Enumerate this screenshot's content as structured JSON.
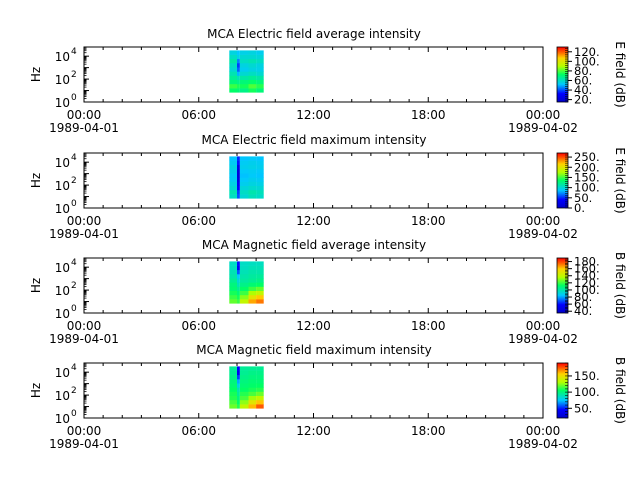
{
  "chart_data": [
    {
      "type": "heatmap",
      "title": "MCA  Electric field average intensity",
      "ylabel": "Hz",
      "colorbar_label": "E field (dB)",
      "colorbar_range": [
        15,
        130
      ],
      "colorbar_ticks": [
        "20.",
        "40.",
        "60.",
        "80.",
        "100.",
        "120."
      ],
      "colorbar_values": [
        20,
        40,
        60,
        80,
        100,
        120
      ],
      "x_ticks": [
        "00:00",
        "06:00",
        "12:00",
        "18:00",
        "00:00"
      ],
      "x_date_start": "1989-04-01",
      "x_date_end": "1989-04-02",
      "y_ticks": [
        "10",
        "10",
        "10"
      ],
      "y_tick_exps": [
        "0",
        "2",
        "4"
      ],
      "y_range_log10": [
        0,
        4.8
      ],
      "data_time_range_hours": [
        7.6,
        9.4
      ],
      "blocks": [
        {
          "t0": 7.6,
          "t1": 8.0,
          "v": [
            72,
            78,
            70,
            66,
            62,
            58,
            60,
            64,
            60,
            56
          ]
        },
        {
          "t0": 8.0,
          "t1": 8.15,
          "v": [
            70,
            75,
            68,
            62,
            50,
            42,
            38,
            45,
            55,
            52
          ]
        },
        {
          "t0": 8.15,
          "t1": 8.6,
          "v": [
            68,
            74,
            70,
            64,
            58,
            54,
            56,
            60,
            58,
            55
          ]
        },
        {
          "t0": 8.6,
          "t1": 9.0,
          "v": [
            74,
            80,
            72,
            66,
            60,
            56,
            58,
            62,
            58,
            56
          ]
        },
        {
          "t0": 9.0,
          "t1": 9.4,
          "v": [
            70,
            76,
            70,
            64,
            58,
            55,
            56,
            60,
            57,
            54
          ]
        }
      ]
    },
    {
      "type": "heatmap",
      "title": "MCA  Electric field maximum intensity",
      "ylabel": "Hz",
      "colorbar_label": "E field (dB)",
      "colorbar_range": [
        0,
        270
      ],
      "colorbar_ticks": [
        "0.",
        "50.",
        "100.",
        "150.",
        "200.",
        "250."
      ],
      "colorbar_values": [
        0,
        50,
        100,
        150,
        200,
        250
      ],
      "x_ticks": [
        "00:00",
        "06:00",
        "12:00",
        "18:00",
        "00:00"
      ],
      "x_date_start": "1989-04-01",
      "x_date_end": "1989-04-02",
      "y_ticks": [
        "10",
        "10",
        "10"
      ],
      "y_tick_exps": [
        "0",
        "2",
        "4"
      ],
      "y_range_log10": [
        0,
        4.8
      ],
      "data_time_range_hours": [
        7.6,
        9.4
      ],
      "blocks": [
        {
          "t0": 7.6,
          "t1": 8.0,
          "v": [
            105,
            110,
            100,
            95,
            90,
            88,
            92,
            95,
            90,
            86
          ]
        },
        {
          "t0": 8.0,
          "t1": 8.15,
          "v": [
            60,
            55,
            40,
            30,
            20,
            15,
            18,
            25,
            45,
            50
          ]
        },
        {
          "t0": 8.15,
          "t1": 8.6,
          "v": [
            100,
            105,
            98,
            92,
            88,
            85,
            88,
            92,
            90,
            86
          ]
        },
        {
          "t0": 8.6,
          "t1": 9.0,
          "v": [
            108,
            112,
            102,
            96,
            92,
            88,
            90,
            94,
            92,
            88
          ]
        },
        {
          "t0": 9.0,
          "t1": 9.4,
          "v": [
            104,
            108,
            100,
            94,
            90,
            86,
            88,
            92,
            90,
            86
          ]
        }
      ]
    },
    {
      "type": "heatmap",
      "title": "MCA  Magnetic field average intensity",
      "ylabel": "Hz",
      "colorbar_label": "B field (dB)",
      "colorbar_range": [
        35,
        190
      ],
      "colorbar_ticks": [
        "40.",
        "60.",
        "80.",
        "100.",
        "120.",
        "140.",
        "160.",
        "180."
      ],
      "colorbar_values": [
        40,
        60,
        80,
        100,
        120,
        140,
        160,
        180
      ],
      "x_ticks": [
        "00:00",
        "06:00",
        "12:00",
        "18:00",
        "00:00"
      ],
      "x_date_start": "1989-04-01",
      "x_date_end": "1989-04-02",
      "y_ticks": [
        "10",
        "10",
        "10"
      ],
      "y_tick_exps": [
        "0",
        "2",
        "4"
      ],
      "y_range_log10": [
        0,
        4.8
      ],
      "data_time_range_hours": [
        7.6,
        9.4
      ],
      "blocks": [
        {
          "t0": 7.6,
          "t1": 8.0,
          "v": [
            125,
            120,
            115,
            110,
            108,
            104,
            100,
            98,
            96,
            95
          ]
        },
        {
          "t0": 8.0,
          "t1": 8.15,
          "v": [
            120,
            115,
            110,
            104,
            98,
            92,
            85,
            70,
            55,
            60
          ]
        },
        {
          "t0": 8.15,
          "t1": 8.6,
          "v": [
            140,
            130,
            120,
            112,
            106,
            102,
            100,
            98,
            96,
            95
          ]
        },
        {
          "t0": 8.6,
          "t1": 9.0,
          "v": [
            165,
            150,
            135,
            120,
            110,
            104,
            102,
            100,
            98,
            96
          ]
        },
        {
          "t0": 9.0,
          "t1": 9.4,
          "v": [
            172,
            160,
            140,
            125,
            112,
            106,
            103,
            100,
            98,
            96
          ]
        }
      ]
    },
    {
      "type": "heatmap",
      "title": "MCA  Magnetic field maximum intensity",
      "ylabel": "Hz",
      "colorbar_label": "B field (dB)",
      "colorbar_range": [
        20,
        190
      ],
      "colorbar_ticks": [
        "50.",
        "100.",
        "150."
      ],
      "colorbar_values": [
        50,
        100,
        150
      ],
      "x_ticks": [
        "00:00",
        "06:00",
        "12:00",
        "18:00",
        "00:00"
      ],
      "x_date_start": "1989-04-01",
      "x_date_end": "1989-04-02",
      "y_ticks": [
        "10",
        "10",
        "10"
      ],
      "y_tick_exps": [
        "0",
        "2",
        "4"
      ],
      "y_range_log10": [
        0,
        4.8
      ],
      "data_time_range_hours": [
        7.6,
        9.4
      ],
      "blocks": [
        {
          "t0": 7.6,
          "t1": 8.0,
          "v": [
            120,
            115,
            110,
            108,
            105,
            102,
            100,
            98,
            96,
            95
          ]
        },
        {
          "t0": 8.0,
          "t1": 8.15,
          "v": [
            110,
            105,
            100,
            95,
            90,
            80,
            70,
            55,
            40,
            45
          ]
        },
        {
          "t0": 8.15,
          "t1": 8.6,
          "v": [
            135,
            125,
            115,
            110,
            105,
            102,
            100,
            98,
            96,
            95
          ]
        },
        {
          "t0": 8.6,
          "t1": 9.0,
          "v": [
            160,
            145,
            128,
            115,
            108,
            104,
            102,
            100,
            98,
            96
          ]
        },
        {
          "t0": 9.0,
          "t1": 9.4,
          "v": [
            175,
            158,
            135,
            120,
            110,
            105,
            102,
            100,
            98,
            96
          ]
        }
      ]
    }
  ]
}
